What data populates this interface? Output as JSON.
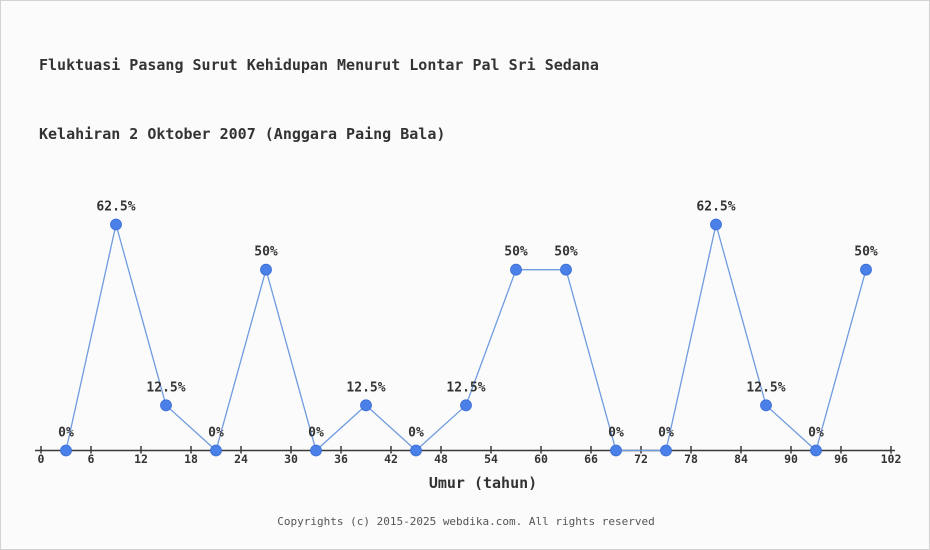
{
  "title": {
    "line1": "Fluktuasi Pasang Surut Kehidupan Menurut Lontar Pal Sri Sedana",
    "line2": "Kelahiran 2 Oktober 2007 (Anggara Paing Bala)"
  },
  "footer": {
    "copyright": "Copyrights (c) 2015-2025 webdika.com. All rights reserved"
  },
  "chart_data": {
    "type": "line",
    "title": "Fluktuasi Pasang Surut Kehidupan Menurut Lontar Pal Sri Sedana Kelahiran 2 Oktober 2007 (Anggara Paing Bala)",
    "xlabel": "Umur (tahun)",
    "ylabel": "",
    "x": [
      3,
      9,
      15,
      21,
      27,
      33,
      39,
      45,
      51,
      57,
      63,
      69,
      75,
      81,
      87,
      93,
      99
    ],
    "values": [
      0,
      62.5,
      12.5,
      0,
      50,
      0,
      12.5,
      0,
      12.5,
      50,
      50,
      0,
      0,
      62.5,
      12.5,
      0,
      50
    ],
    "point_labels": [
      "0%",
      "62.5%",
      "12.5%",
      "0%",
      "50%",
      "0%",
      "12.5%",
      "0%",
      "12.5%",
      "50%",
      "50%",
      "0%",
      "0%",
      "62.5%",
      "12.5%",
      "0%",
      "50%"
    ],
    "x_ticks": [
      0,
      6,
      12,
      18,
      24,
      30,
      36,
      42,
      48,
      54,
      60,
      66,
      72,
      78,
      84,
      90,
      96,
      102
    ],
    "xlim": [
      0,
      102
    ],
    "ylim": [
      0,
      70
    ],
    "grid": false,
    "legend": null,
    "colors": {
      "line": "#6f9be0",
      "marker": "#4a80e8",
      "marker_edge": "#3b6fd4",
      "axis": "#3a3a3a",
      "text": "#333333"
    }
  }
}
